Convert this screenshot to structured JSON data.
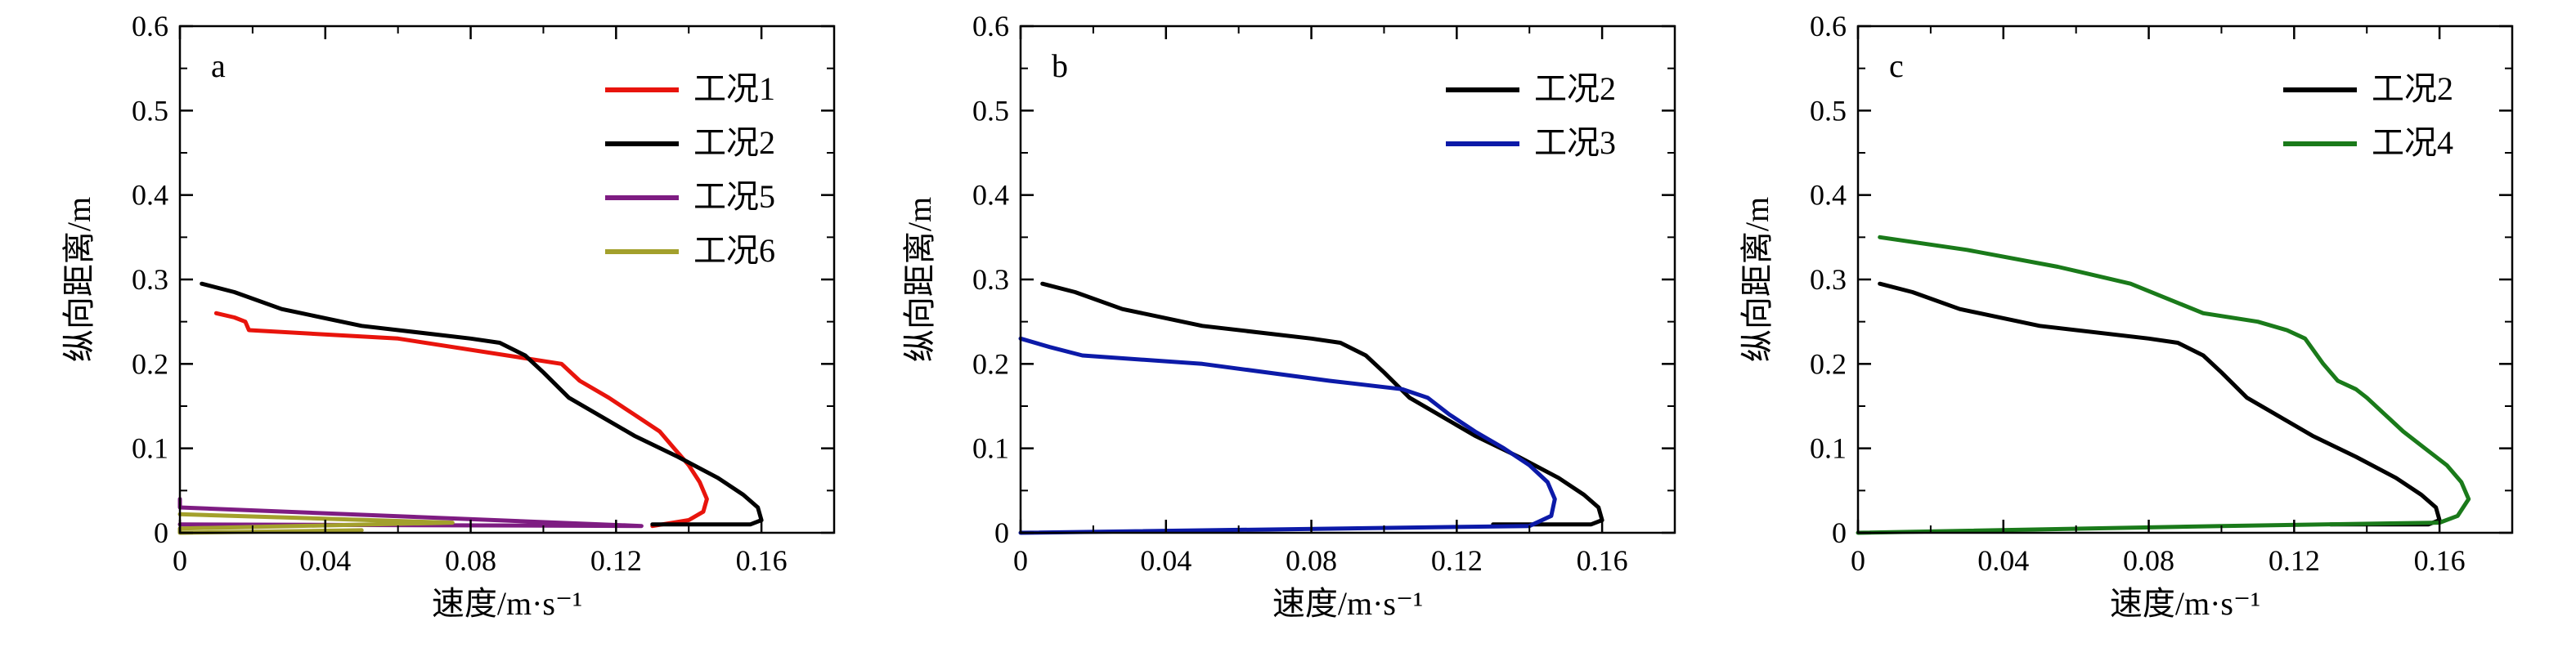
{
  "chart_data": [
    {
      "type": "line",
      "panel_label": "a",
      "xlabel": "速度/m·s⁻¹",
      "ylabel": "纵向距离/m",
      "xlim": [
        0,
        0.18
      ],
      "ylim": [
        0,
        0.6
      ],
      "xticks": [
        "0",
        "0.04",
        "0.08",
        "0.12",
        "0.16"
      ],
      "yticks": [
        "0",
        "0.1",
        "0.2",
        "0.3",
        "0.4",
        "0.5",
        "0.6"
      ],
      "legend_position": "top-right",
      "series": [
        {
          "name": "工况1",
          "color": "#e8140c",
          "points": [
            [
              0.01,
              0.26
            ],
            [
              0.015,
              0.255
            ],
            [
              0.018,
              0.25
            ],
            [
              0.019,
              0.24
            ],
            [
              0.06,
              0.23
            ],
            [
              0.105,
              0.2
            ],
            [
              0.11,
              0.18
            ],
            [
              0.118,
              0.16
            ],
            [
              0.125,
              0.14
            ],
            [
              0.132,
              0.12
            ],
            [
              0.136,
              0.1
            ],
            [
              0.14,
              0.08
            ],
            [
              0.143,
              0.06
            ],
            [
              0.145,
              0.04
            ],
            [
              0.144,
              0.025
            ],
            [
              0.14,
              0.015
            ],
            [
              0.13,
              0.008
            ]
          ]
        },
        {
          "name": "工况2",
          "color": "#000000",
          "points": [
            [
              0.006,
              0.295
            ],
            [
              0.015,
              0.285
            ],
            [
              0.028,
              0.265
            ],
            [
              0.05,
              0.245
            ],
            [
              0.08,
              0.23
            ],
            [
              0.088,
              0.225
            ],
            [
              0.095,
              0.21
            ],
            [
              0.1,
              0.19
            ],
            [
              0.107,
              0.16
            ],
            [
              0.115,
              0.14
            ],
            [
              0.125,
              0.115
            ],
            [
              0.137,
              0.09
            ],
            [
              0.148,
              0.065
            ],
            [
              0.155,
              0.045
            ],
            [
              0.159,
              0.03
            ],
            [
              0.16,
              0.015
            ],
            [
              0.157,
              0.01
            ],
            [
              0.13,
              0.01
            ]
          ]
        },
        {
          "name": "工况5",
          "color": "#7e1c82",
          "points": [
            [
              0.0,
              0.04
            ],
            [
              0.0,
              0.03
            ],
            [
              0.127,
              0.008
            ],
            [
              0.0,
              0.01
            ]
          ]
        },
        {
          "name": "工况6",
          "color": "#a3a02c",
          "points": [
            [
              0.0,
              0.022
            ],
            [
              0.075,
              0.012
            ],
            [
              0.0,
              0.005
            ],
            [
              0.0,
              0.0
            ],
            [
              0.05,
              0.003
            ]
          ]
        }
      ]
    },
    {
      "type": "line",
      "panel_label": "b",
      "xlabel": "速度/m·s⁻¹",
      "ylabel": "纵向距离/m",
      "xlim": [
        0,
        0.18
      ],
      "ylim": [
        0,
        0.6
      ],
      "xticks": [
        "0",
        "0.04",
        "0.08",
        "0.12",
        "0.16"
      ],
      "yticks": [
        "0",
        "0.1",
        "0.2",
        "0.3",
        "0.4",
        "0.5",
        "0.6"
      ],
      "legend_position": "top-right",
      "series": [
        {
          "name": "工况2",
          "color": "#000000",
          "points": [
            [
              0.006,
              0.295
            ],
            [
              0.015,
              0.285
            ],
            [
              0.028,
              0.265
            ],
            [
              0.05,
              0.245
            ],
            [
              0.08,
              0.23
            ],
            [
              0.088,
              0.225
            ],
            [
              0.095,
              0.21
            ],
            [
              0.1,
              0.19
            ],
            [
              0.107,
              0.16
            ],
            [
              0.115,
              0.14
            ],
            [
              0.125,
              0.115
            ],
            [
              0.137,
              0.09
            ],
            [
              0.148,
              0.065
            ],
            [
              0.155,
              0.045
            ],
            [
              0.159,
              0.03
            ],
            [
              0.16,
              0.015
            ],
            [
              0.157,
              0.01
            ],
            [
              0.13,
              0.01
            ]
          ]
        },
        {
          "name": "工况3",
          "color": "#0c1aa8",
          "points": [
            [
              0.0,
              0.23
            ],
            [
              0.008,
              0.22
            ],
            [
              0.017,
              0.21
            ],
            [
              0.05,
              0.2
            ],
            [
              0.085,
              0.18
            ],
            [
              0.105,
              0.17
            ],
            [
              0.112,
              0.16
            ],
            [
              0.118,
              0.14
            ],
            [
              0.125,
              0.12
            ],
            [
              0.133,
              0.1
            ],
            [
              0.14,
              0.08
            ],
            [
              0.145,
              0.06
            ],
            [
              0.147,
              0.04
            ],
            [
              0.146,
              0.02
            ],
            [
              0.14,
              0.008
            ],
            [
              0.0,
              0.0
            ]
          ]
        }
      ]
    },
    {
      "type": "line",
      "panel_label": "c",
      "xlabel": "速度/m·s⁻¹",
      "ylabel": "纵向距离/m",
      "xlim": [
        0,
        0.18
      ],
      "ylim": [
        0,
        0.6
      ],
      "xticks": [
        "0",
        "0.04",
        "0.08",
        "0.12",
        "0.16"
      ],
      "yticks": [
        "0",
        "0.1",
        "0.2",
        "0.3",
        "0.4",
        "0.5",
        "0.6"
      ],
      "legend_position": "top-right",
      "series": [
        {
          "name": "工况2",
          "color": "#000000",
          "points": [
            [
              0.006,
              0.295
            ],
            [
              0.015,
              0.285
            ],
            [
              0.028,
              0.265
            ],
            [
              0.05,
              0.245
            ],
            [
              0.08,
              0.23
            ],
            [
              0.088,
              0.225
            ],
            [
              0.095,
              0.21
            ],
            [
              0.1,
              0.19
            ],
            [
              0.107,
              0.16
            ],
            [
              0.115,
              0.14
            ],
            [
              0.125,
              0.115
            ],
            [
              0.137,
              0.09
            ],
            [
              0.148,
              0.065
            ],
            [
              0.155,
              0.045
            ],
            [
              0.159,
              0.03
            ],
            [
              0.16,
              0.015
            ],
            [
              0.157,
              0.01
            ],
            [
              0.13,
              0.01
            ]
          ]
        },
        {
          "name": "工况4",
          "color": "#1a7a1a",
          "points": [
            [
              0.006,
              0.35
            ],
            [
              0.03,
              0.335
            ],
            [
              0.055,
              0.315
            ],
            [
              0.075,
              0.295
            ],
            [
              0.095,
              0.26
            ],
            [
              0.11,
              0.25
            ],
            [
              0.118,
              0.24
            ],
            [
              0.123,
              0.23
            ],
            [
              0.128,
              0.2
            ],
            [
              0.132,
              0.18
            ],
            [
              0.137,
              0.17
            ],
            [
              0.14,
              0.16
            ],
            [
              0.145,
              0.14
            ],
            [
              0.15,
              0.12
            ],
            [
              0.156,
              0.1
            ],
            [
              0.162,
              0.08
            ],
            [
              0.166,
              0.06
            ],
            [
              0.168,
              0.04
            ],
            [
              0.165,
              0.02
            ],
            [
              0.16,
              0.012
            ],
            [
              0.1,
              0.008
            ],
            [
              0.0,
              0.0
            ]
          ]
        }
      ]
    }
  ]
}
